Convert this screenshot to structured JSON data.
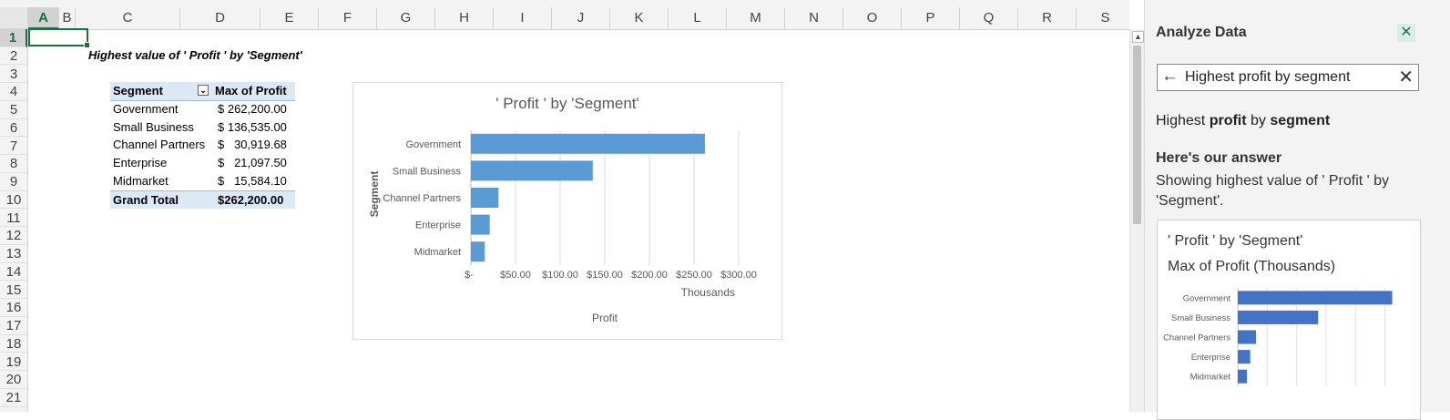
{
  "sheet": {
    "columns": [
      "A",
      "B",
      "C",
      "D",
      "E",
      "F",
      "G",
      "H",
      "I",
      "J",
      "K",
      "L",
      "M",
      "N",
      "O",
      "P",
      "Q",
      "R",
      "S"
    ],
    "rows": [
      "1",
      "2",
      "3",
      "4",
      "5",
      "6",
      "7",
      "8",
      "9",
      "10",
      "11",
      "12",
      "13",
      "14",
      "15",
      "16",
      "17",
      "18",
      "19",
      "20",
      "21"
    ],
    "selected_column": "A",
    "selected_row": "1",
    "title_cell": "Highest value of ' Profit ' by 'Segment'"
  },
  "pivot": {
    "header": {
      "segment": "Segment",
      "value": "Max of Profit"
    },
    "rows": [
      {
        "segment": "Government",
        "value": "$ 262,200.00"
      },
      {
        "segment": "Small Business",
        "value": "$ 136,535.00"
      },
      {
        "segment": "Channel Partners",
        "value": "$   30,919.68"
      },
      {
        "segment": "Enterprise",
        "value": "$   21,097.50"
      },
      {
        "segment": "Midmarket",
        "value": "$   15,584.10"
      }
    ],
    "total": {
      "segment": "Grand Total",
      "value": "$262,200.00"
    }
  },
  "chart_data": [
    {
      "type": "bar",
      "orientation": "horizontal",
      "title": "' Profit ' by 'Segment'",
      "xlabel": "Profit",
      "ylabel": "Segment",
      "x_unit_label": "Thousands",
      "categories": [
        "Government",
        "Small Business",
        "Channel Partners",
        "Enterprise",
        "Midmarket"
      ],
      "values": [
        262.2,
        136.535,
        30.91968,
        21.0975,
        15.5841
      ],
      "xlim": [
        0,
        300
      ],
      "xticks": [
        0,
        50,
        100,
        150,
        200,
        250,
        300
      ],
      "xtick_labels": [
        "$-",
        "$50.00",
        "$100.00",
        "$150.00",
        "$200.00",
        "$250.00",
        "$300.00"
      ],
      "grid": true,
      "color": "#5b9bd5"
    },
    {
      "type": "bar",
      "orientation": "horizontal",
      "title": "' Profit ' by 'Segment'",
      "subtitle": "Max of Profit (Thousands)",
      "categories": [
        "Government",
        "Small Business",
        "Channel Partners",
        "Enterprise",
        "Midmarket"
      ],
      "values": [
        262.2,
        136.535,
        30.91968,
        21.0975,
        15.5841
      ],
      "xlim": [
        0,
        300
      ],
      "grid": true,
      "color": "#4472c4"
    }
  ],
  "panel": {
    "title": "Analyze Data",
    "close_icon": "close-icon",
    "search": {
      "value": "Highest profit by segment",
      "back_icon": "back-arrow-icon",
      "clear_icon": "clear-icon"
    },
    "query": {
      "pre": "Highest ",
      "bold1": "profit",
      "mid": " by ",
      "bold2": "segment"
    },
    "answer_heading": "Here's our answer",
    "answer_description": "Showing highest value of ' Profit ' by 'Segment'."
  },
  "colors": {
    "accent": "#217346",
    "bar": "#5b9bd5",
    "panel_bar": "#4472c4",
    "pivot_header": "#dde8f5"
  }
}
